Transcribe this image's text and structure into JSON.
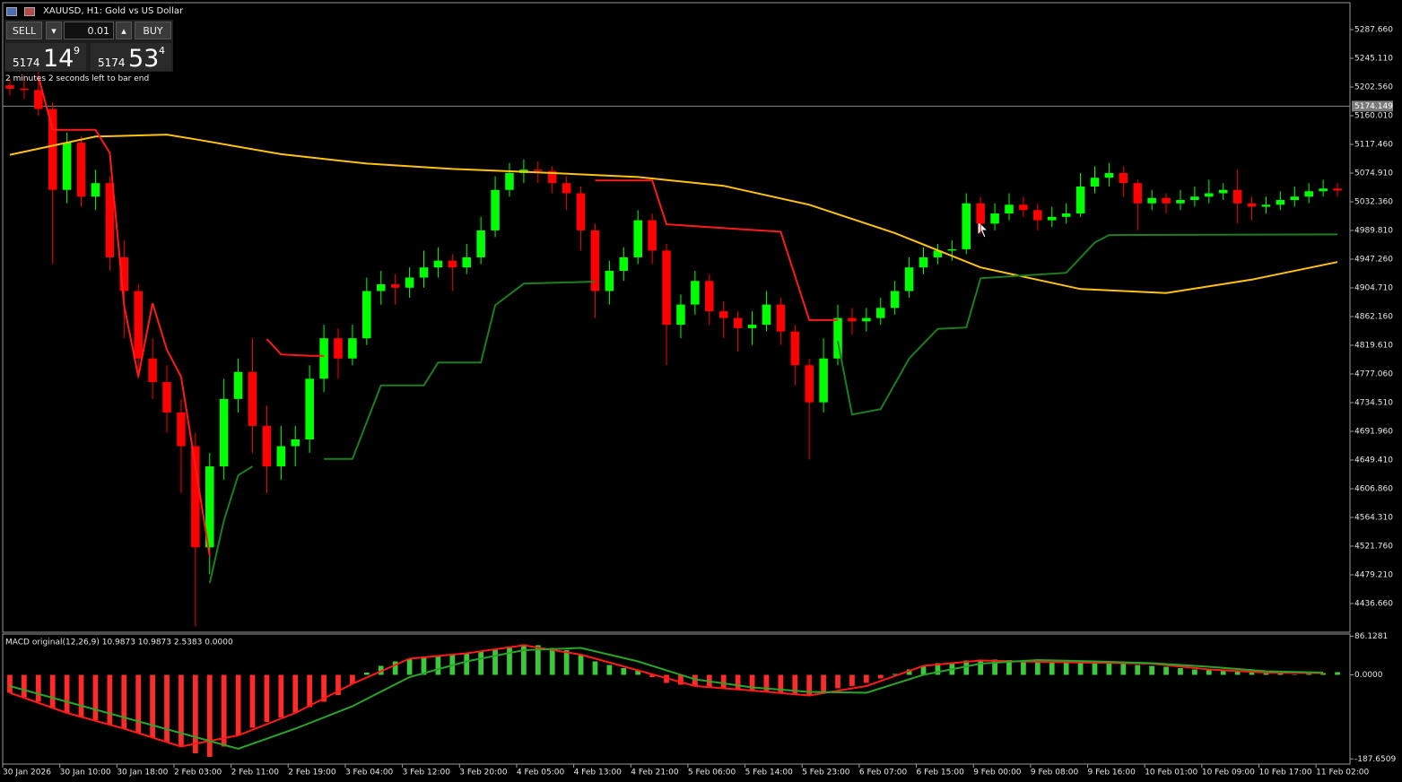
{
  "header": {
    "title": "XAUUSD, H1:  Gold vs US Dollar"
  },
  "trade_panel": {
    "sell": "SELL",
    "buy": "BUY",
    "volume": "0.01",
    "bid": {
      "big": "5174",
      "main": "14",
      "small": "9"
    },
    "ask": {
      "big": "5174",
      "main": "53",
      "small": "4"
    },
    "timer": "2 minutes 2 seconds left to bar end"
  },
  "chart_data": [
    {
      "type": "candlestick",
      "up_color": "#00ff00",
      "down_color": "#ff0000",
      "ylim": [
        4394.11,
        5327.55
      ],
      "yticks": [
        {
          "value": 5287.66,
          "label": "5287.660"
        },
        {
          "value": 5245.11,
          "label": "5245.110"
        },
        {
          "value": 5202.56,
          "label": "5202.560"
        },
        {
          "value": 5160.01,
          "label": "5160.010"
        },
        {
          "value": 5117.46,
          "label": "5117.460"
        },
        {
          "value": 5074.91,
          "label": "5074.910"
        },
        {
          "value": 5032.36,
          "label": "5032.360"
        },
        {
          "value": 4989.81,
          "label": "4989.810"
        },
        {
          "value": 4947.26,
          "label": "4947.260"
        },
        {
          "value": 4904.71,
          "label": "4904.710"
        },
        {
          "value": 4862.16,
          "label": "4862.160"
        },
        {
          "value": 4819.61,
          "label": "4819.610"
        },
        {
          "value": 4777.06,
          "label": "4777.060"
        },
        {
          "value": 4734.51,
          "label": "4734.510"
        },
        {
          "value": 4691.96,
          "label": "4691.960"
        },
        {
          "value": 4649.41,
          "label": "4649.410"
        },
        {
          "value": 4606.86,
          "label": "4606.860"
        },
        {
          "value": 4564.31,
          "label": "4564.310"
        },
        {
          "value": 4521.76,
          "label": "4521.760"
        },
        {
          "value": 4479.21,
          "label": "4479.210"
        },
        {
          "value": 4436.66,
          "label": "4436.660"
        }
      ],
      "price_line": {
        "value": 5174.149,
        "label": "5174.149"
      },
      "x_labels": [
        "30 Jan 2026",
        "30 Jan 10:00",
        "30 Jan 18:00",
        "2 Feb 03:00",
        "2 Feb 11:00",
        "2 Feb 19:00",
        "3 Feb 04:00",
        "3 Feb 12:00",
        "3 Feb 20:00",
        "4 Feb 05:00",
        "4 Feb 13:00",
        "4 Feb 21:00",
        "5 Feb 06:00",
        "5 Feb 14:00",
        "5 Feb 23:00",
        "6 Feb 07:00",
        "6 Feb 15:00",
        "9 Feb 00:00",
        "9 Feb 08:00",
        "9 Feb 16:00",
        "10 Feb 01:00",
        "10 Feb 09:00",
        "10 Feb 17:00",
        "11 Feb 02:00"
      ],
      "ohlc": [
        [
          5205,
          5215,
          5190,
          5200
        ],
        [
          5200,
          5220,
          5185,
          5198
        ],
        [
          5198,
          5230,
          5160,
          5170
        ],
        [
          5170,
          5180,
          4940,
          5050
        ],
        [
          5050,
          5135,
          5030,
          5120
        ],
        [
          5120,
          5130,
          5025,
          5040
        ],
        [
          5040,
          5080,
          5020,
          5060
        ],
        [
          5060,
          5070,
          4930,
          4950
        ],
        [
          4950,
          4975,
          4830,
          4900
        ],
        [
          4900,
          4910,
          4770,
          4800
        ],
        [
          4800,
          4830,
          4740,
          4765
        ],
        [
          4765,
          4790,
          4690,
          4720
        ],
        [
          4720,
          4740,
          4600,
          4670
        ],
        [
          4670,
          4690,
          4403,
          4520
        ],
        [
          4520,
          4660,
          4480,
          4640
        ],
        [
          4640,
          4770,
          4620,
          4740
        ],
        [
          4740,
          4800,
          4720,
          4780
        ],
        [
          4780,
          4830,
          4660,
          4700
        ],
        [
          4700,
          4730,
          4600,
          4640
        ],
        [
          4640,
          4700,
          4620,
          4670
        ],
        [
          4670,
          4700,
          4640,
          4680
        ],
        [
          4680,
          4790,
          4660,
          4770
        ],
        [
          4770,
          4850,
          4750,
          4830
        ],
        [
          4830,
          4845,
          4770,
          4800
        ],
        [
          4800,
          4850,
          4790,
          4830
        ],
        [
          4830,
          4920,
          4820,
          4900
        ],
        [
          4900,
          4930,
          4880,
          4910
        ],
        [
          4910,
          4925,
          4880,
          4905
        ],
        [
          4905,
          4935,
          4890,
          4920
        ],
        [
          4920,
          4960,
          4905,
          4935
        ],
        [
          4935,
          4965,
          4920,
          4945
        ],
        [
          4945,
          4955,
          4900,
          4935
        ],
        [
          4935,
          4970,
          4925,
          4950
        ],
        [
          4950,
          5010,
          4940,
          4990
        ],
        [
          4990,
          5070,
          4980,
          5050
        ],
        [
          5050,
          5090,
          5040,
          5075
        ],
        [
          5075,
          5095,
          5060,
          5080
        ],
        [
          5080,
          5092,
          5060,
          5078
        ],
        [
          5078,
          5085,
          5045,
          5060
        ],
        [
          5060,
          5070,
          5020,
          5045
        ],
        [
          5045,
          5055,
          4960,
          4990
        ],
        [
          4990,
          5000,
          4860,
          4900
        ],
        [
          4900,
          4945,
          4880,
          4930
        ],
        [
          4930,
          4965,
          4915,
          4950
        ],
        [
          4950,
          5020,
          4940,
          5005
        ],
        [
          5005,
          5015,
          4940,
          4960
        ],
        [
          4960,
          4970,
          4790,
          4850
        ],
        [
          4850,
          4895,
          4830,
          4880
        ],
        [
          4880,
          4930,
          4865,
          4915
        ],
        [
          4915,
          4925,
          4850,
          4870
        ],
        [
          4870,
          4885,
          4830,
          4860
        ],
        [
          4860,
          4870,
          4810,
          4845
        ],
        [
          4845,
          4870,
          4820,
          4850
        ],
        [
          4850,
          4900,
          4840,
          4880
        ],
        [
          4880,
          4890,
          4820,
          4840
        ],
        [
          4840,
          4850,
          4760,
          4790
        ],
        [
          4790,
          4800,
          4650,
          4735
        ],
        [
          4735,
          4830,
          4720,
          4800
        ],
        [
          4800,
          4880,
          4790,
          4860
        ],
        [
          4860,
          4875,
          4835,
          4855
        ],
        [
          4855,
          4875,
          4840,
          4860
        ],
        [
          4860,
          4890,
          4850,
          4875
        ],
        [
          4875,
          4915,
          4865,
          4900
        ],
        [
          4900,
          4950,
          4890,
          4935
        ],
        [
          4935,
          4965,
          4925,
          4950
        ],
        [
          4950,
          4970,
          4940,
          4960
        ],
        [
          4960,
          4975,
          4945,
          4962
        ],
        [
          4962,
          5045,
          4955,
          5030
        ],
        [
          5030,
          5040,
          4985,
          5000
        ],
        [
          5000,
          5030,
          4990,
          5015
        ],
        [
          5015,
          5045,
          5005,
          5028
        ],
        [
          5028,
          5040,
          5010,
          5020
        ],
        [
          5020,
          5030,
          4990,
          5005
        ],
        [
          5005,
          5025,
          4995,
          5010
        ],
        [
          5010,
          5030,
          5000,
          5015
        ],
        [
          5015,
          5075,
          5010,
          5055
        ],
        [
          5055,
          5085,
          5045,
          5068
        ],
        [
          5068,
          5090,
          5055,
          5075
        ],
        [
          5075,
          5085,
          5040,
          5060
        ],
        [
          5060,
          5065,
          4990,
          5030
        ],
        [
          5030,
          5050,
          5020,
          5038
        ],
        [
          5038,
          5045,
          5015,
          5030
        ],
        [
          5030,
          5050,
          5020,
          5035
        ],
        [
          5035,
          5055,
          5025,
          5040
        ],
        [
          5040,
          5065,
          5030,
          5045
        ],
        [
          5045,
          5060,
          5035,
          5050
        ],
        [
          5050,
          5080,
          5000,
          5030
        ],
        [
          5030,
          5040,
          5005,
          5025
        ],
        [
          5025,
          5040,
          5015,
          5028
        ],
        [
          5028,
          5048,
          5020,
          5035
        ],
        [
          5035,
          5055,
          5025,
          5040
        ],
        [
          5040,
          5060,
          5030,
          5048
        ],
        [
          5048,
          5065,
          5040,
          5052
        ],
        [
          5052,
          5060,
          5040,
          5049
        ]
      ],
      "lines": [
        {
          "color": "#ffc20e",
          "x": [
            0,
            6,
            11,
            13,
            19,
            25,
            31,
            37,
            44,
            50,
            56,
            62,
            68,
            75,
            81,
            87,
            93
          ],
          "values": [
            5102,
            5129,
            5132,
            5125,
            5103,
            5089,
            5081,
            5076,
            5069,
            5056,
            5028,
            4986,
            4935,
            4903,
            4897,
            4917,
            4943
          ]
        },
        {
          "color": "#ff1a1a",
          "x": [
            2,
            3,
            6,
            7,
            8,
            9,
            10,
            11,
            12,
            13,
            14
          ],
          "values": [
            5218,
            5139,
            5139,
            5105,
            4879,
            4773,
            4882,
            4813,
            4773,
            4640,
            4507
          ]
        },
        {
          "color": "#1e7d1e",
          "x": [
            14,
            15,
            16,
            17
          ],
          "values": [
            4467,
            4560,
            4627,
            4640
          ]
        },
        {
          "color": "#ff1a1a",
          "x": [
            18,
            19,
            21,
            22
          ],
          "values": [
            4829,
            4806,
            4804,
            4804
          ]
        },
        {
          "color": "#1e7d1e",
          "x": [
            22,
            24,
            26,
            29,
            30,
            33,
            34,
            36,
            41
          ],
          "values": [
            4651,
            4651,
            4760,
            4760,
            4794,
            4794,
            4879,
            4911,
            4914
          ]
        },
        {
          "color": "#ff1a1a",
          "x": [
            41,
            45,
            46,
            51,
            54,
            56,
            58
          ],
          "values": [
            5064,
            5064,
            4999,
            4992,
            4988,
            4857,
            4857
          ]
        },
        {
          "color": "#1e7d1e",
          "x": [
            58,
            59,
            61,
            63,
            65,
            67,
            68,
            74,
            76,
            77,
            93
          ],
          "values": [
            4826,
            4717,
            4725,
            4800,
            4844,
            4846,
            4919,
            4927,
            4972,
            4983,
            4984
          ]
        }
      ]
    },
    {
      "type": "macd",
      "title": "MACD original(12,26,9) 10.9873 10.9873 2.5383 0.0000",
      "up_color": "#3cc83c",
      "down_color": "#ff2a2a",
      "ylim": [
        -199,
        91
      ],
      "yticks": [
        {
          "value": 86.1281,
          "label": "86.1281"
        },
        {
          "value": 0,
          "label": "0.0000"
        },
        {
          "value": -187.6509,
          "label": "-187.6509"
        }
      ],
      "histogram": [
        -40,
        -50,
        -60,
        -75,
        -85,
        -95,
        -101,
        -110,
        -120,
        -130,
        -140,
        -150,
        -160,
        -175,
        -183,
        -160,
        -135,
        -118,
        -105,
        -95,
        -85,
        -72,
        -60,
        -45,
        -20,
        5,
        20,
        30,
        36,
        40,
        42,
        44,
        48,
        52,
        58,
        63,
        68,
        66,
        60,
        55,
        45,
        30,
        22,
        15,
        10,
        -5,
        -18,
        -22,
        -25,
        -28,
        -30,
        -33,
        -35,
        -37,
        -40,
        -43,
        -46,
        -40,
        -30,
        -25,
        -18,
        -8,
        2,
        12,
        20,
        26,
        28,
        32,
        34,
        34,
        33,
        31,
        29,
        28,
        27,
        28,
        28,
        27,
        25,
        22,
        20,
        18,
        15,
        12,
        11,
        10,
        8,
        6,
        5,
        3,
        1,
        2,
        4,
        6
      ],
      "lines": [
        {
          "color": "#ff1a1a",
          "x": [
            0,
            4,
            8,
            12,
            16,
            20,
            24,
            28,
            32,
            36,
            40,
            44,
            48,
            52,
            56,
            60,
            64,
            68,
            72,
            76,
            80,
            84,
            88,
            92
          ],
          "values": [
            -40,
            -85,
            -120,
            -160,
            -135,
            -85,
            -20,
            36,
            48,
            66,
            45,
            10,
            -25,
            -35,
            -46,
            -25,
            20,
            32,
            29,
            27,
            25,
            12,
            5,
            4
          ]
        },
        {
          "color": "#2aa52a",
          "x": [
            0,
            4,
            8,
            12,
            16,
            20,
            24,
            28,
            32,
            36,
            40,
            44,
            48,
            52,
            56,
            60,
            64,
            68,
            72,
            76,
            80,
            84,
            88,
            92
          ],
          "values": [
            -25,
            -60,
            -95,
            -130,
            -165,
            -120,
            -70,
            -5,
            30,
            55,
            60,
            30,
            -10,
            -28,
            -38,
            -40,
            0,
            25,
            33,
            30,
            26,
            18,
            8,
            5
          ]
        }
      ]
    }
  ]
}
